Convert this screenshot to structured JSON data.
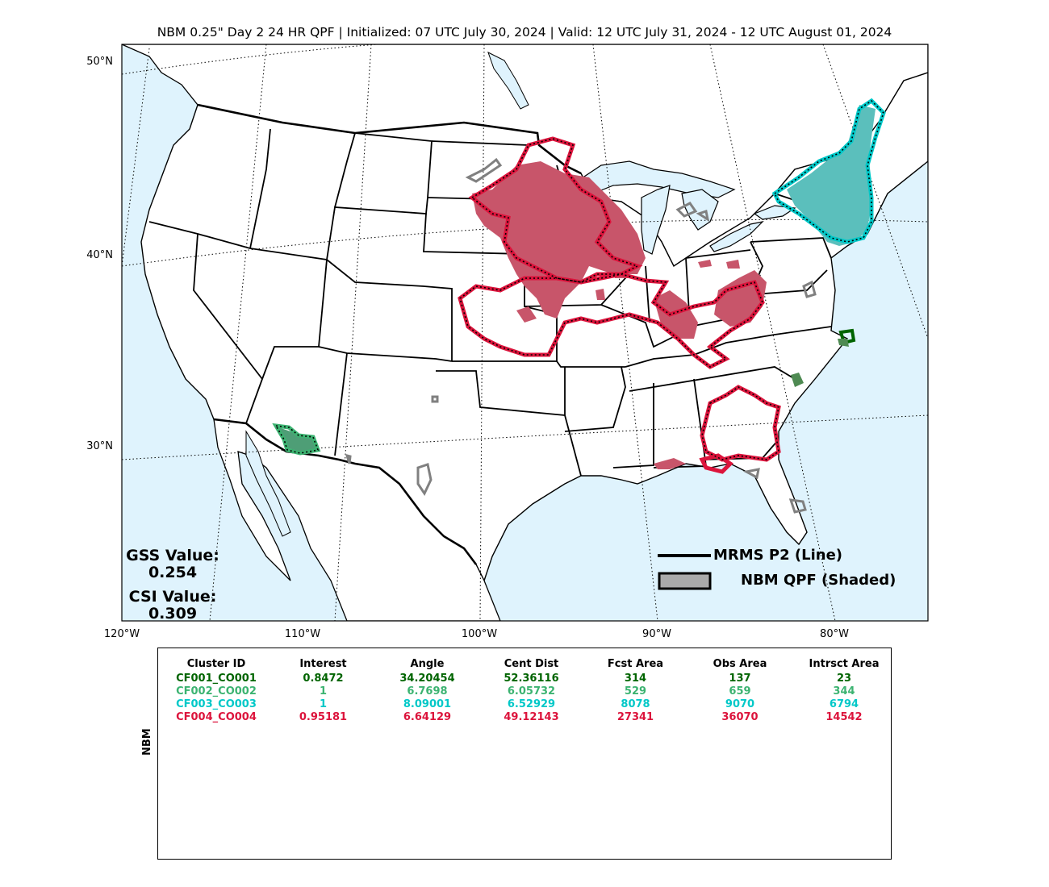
{
  "title": "NBM 0.25\" Day 2 24 HR QPF | Initialized: 07 UTC July 30, 2024 | Valid: 12 UTC July 31, 2024 - 12 UTC August 01, 2024",
  "map": {
    "lat_labels": [
      "50°N",
      "40°N",
      "30°N"
    ],
    "lon_labels": [
      "120°W",
      "110°W",
      "100°W",
      "90°W",
      "80°W"
    ],
    "colors": {
      "ocean": "#dff3fd",
      "land": "#ffffff",
      "cf001": "#006400",
      "cf002": "#3cb371",
      "cf003": "#00c8c8",
      "cf004": "#dc143c",
      "unmatched": "#808080"
    }
  },
  "scores": {
    "gss_label": "GSS Value:",
    "gss_value": "0.254",
    "csi_label": "CSI Value:",
    "csi_value": "0.309"
  },
  "legend": {
    "line_label": "MRMS P2 (Line)",
    "shaded_label": "NBM QPF (Shaded)"
  },
  "table": {
    "side_label": "NBM",
    "headers": [
      "Cluster ID",
      "Interest",
      "Angle",
      "Cent Dist",
      "Fcst Area",
      "Obs Area",
      "Intrsct Area"
    ],
    "rows": [
      {
        "color": "#006400",
        "cells": [
          "CF001_CO001",
          "0.8472",
          "34.20454",
          "52.36116",
          "314",
          "137",
          "23"
        ]
      },
      {
        "color": "#3cb371",
        "cells": [
          "CF002_CO002",
          "1",
          "6.7698",
          "6.05732",
          "529",
          "659",
          "344"
        ]
      },
      {
        "color": "#00c8c8",
        "cells": [
          "CF003_CO003",
          "1",
          "8.09001",
          "6.52929",
          "8078",
          "9070",
          "6794"
        ]
      },
      {
        "color": "#dc143c",
        "cells": [
          "CF004_CO004",
          "0.95181",
          "6.64129",
          "49.12143",
          "27341",
          "36070",
          "14542"
        ]
      }
    ]
  }
}
